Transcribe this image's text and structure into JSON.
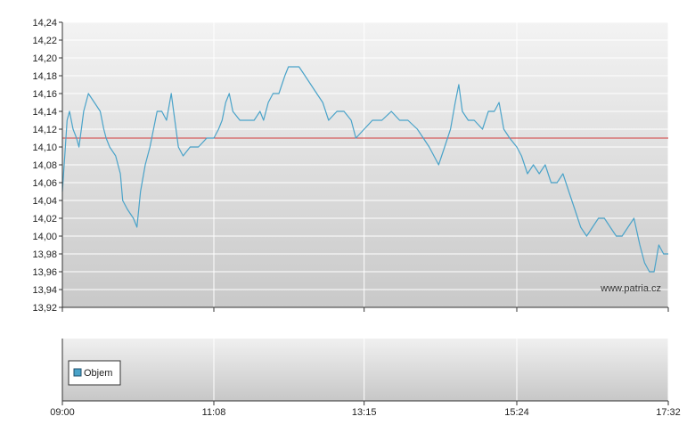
{
  "chart_data": {
    "type": "line",
    "x_ticks": [
      "09:00",
      "11:08",
      "13:15",
      "15:24",
      "17:32"
    ],
    "ylim": [
      13.92,
      14.24
    ],
    "y_ticks": [
      "14,24",
      "14,22",
      "14,20",
      "14,18",
      "14,16",
      "14,14",
      "14,12",
      "14,10",
      "14,08",
      "14,06",
      "14,04",
      "14,02",
      "14,00",
      "13,98",
      "13,96",
      "13,94",
      "13,92"
    ],
    "reference_line": 14.11,
    "series": [
      {
        "color": "#4aa3c9",
        "points": [
          [
            "09:00",
            14.05
          ],
          [
            "09:02",
            14.09
          ],
          [
            "09:04",
            14.13
          ],
          [
            "09:06",
            14.14
          ],
          [
            "09:09",
            14.12
          ],
          [
            "09:12",
            14.11
          ],
          [
            "09:14",
            14.1
          ],
          [
            "09:16",
            14.12
          ],
          [
            "09:18",
            14.14
          ],
          [
            "09:22",
            14.16
          ],
          [
            "09:27",
            14.15
          ],
          [
            "09:32",
            14.14
          ],
          [
            "09:35",
            14.12
          ],
          [
            "09:37",
            14.11
          ],
          [
            "09:40",
            14.1
          ],
          [
            "09:45",
            14.09
          ],
          [
            "09:49",
            14.07
          ],
          [
            "09:51",
            14.04
          ],
          [
            "09:55",
            14.03
          ],
          [
            "10:00",
            14.02
          ],
          [
            "10:03",
            14.01
          ],
          [
            "10:06",
            14.05
          ],
          [
            "10:10",
            14.08
          ],
          [
            "10:14",
            14.1
          ],
          [
            "10:17",
            14.12
          ],
          [
            "10:20",
            14.14
          ],
          [
            "10:24",
            14.14
          ],
          [
            "10:28",
            14.13
          ],
          [
            "10:32",
            14.16
          ],
          [
            "10:35",
            14.13
          ],
          [
            "10:38",
            14.1
          ],
          [
            "10:42",
            14.09
          ],
          [
            "10:48",
            14.1
          ],
          [
            "10:55",
            14.1
          ],
          [
            "11:02",
            14.11
          ],
          [
            "11:08",
            14.11
          ],
          [
            "11:12",
            14.12
          ],
          [
            "11:15",
            14.13
          ],
          [
            "11:18",
            14.15
          ],
          [
            "11:21",
            14.16
          ],
          [
            "11:24",
            14.14
          ],
          [
            "11:30",
            14.13
          ],
          [
            "11:36",
            14.13
          ],
          [
            "11:42",
            14.13
          ],
          [
            "11:47",
            14.14
          ],
          [
            "11:50",
            14.13
          ],
          [
            "11:54",
            14.15
          ],
          [
            "11:58",
            14.16
          ],
          [
            "12:03",
            14.16
          ],
          [
            "12:08",
            14.18
          ],
          [
            "12:11",
            14.19
          ],
          [
            "12:16",
            14.19
          ],
          [
            "12:20",
            14.19
          ],
          [
            "12:25",
            14.18
          ],
          [
            "12:30",
            14.17
          ],
          [
            "12:35",
            14.16
          ],
          [
            "12:40",
            14.15
          ],
          [
            "12:45",
            14.13
          ],
          [
            "12:52",
            14.14
          ],
          [
            "12:58",
            14.14
          ],
          [
            "13:04",
            14.13
          ],
          [
            "13:08",
            14.11
          ],
          [
            "13:15",
            14.12
          ],
          [
            "13:22",
            14.13
          ],
          [
            "13:30",
            14.13
          ],
          [
            "13:38",
            14.14
          ],
          [
            "13:45",
            14.13
          ],
          [
            "13:52",
            14.13
          ],
          [
            "14:00",
            14.12
          ],
          [
            "14:05",
            14.11
          ],
          [
            "14:10",
            14.1
          ],
          [
            "14:14",
            14.09
          ],
          [
            "14:18",
            14.08
          ],
          [
            "14:23",
            14.1
          ],
          [
            "14:28",
            14.12
          ],
          [
            "14:32",
            14.15
          ],
          [
            "14:35",
            14.17
          ],
          [
            "14:38",
            14.14
          ],
          [
            "14:43",
            14.13
          ],
          [
            "14:48",
            14.13
          ],
          [
            "14:55",
            14.12
          ],
          [
            "15:00",
            14.14
          ],
          [
            "15:05",
            14.14
          ],
          [
            "15:09",
            14.15
          ],
          [
            "15:13",
            14.12
          ],
          [
            "15:18",
            14.11
          ],
          [
            "15:24",
            14.1
          ],
          [
            "15:28",
            14.09
          ],
          [
            "15:33",
            14.07
          ],
          [
            "15:38",
            14.08
          ],
          [
            "15:43",
            14.07
          ],
          [
            "15:48",
            14.08
          ],
          [
            "15:53",
            14.06
          ],
          [
            "15:58",
            14.06
          ],
          [
            "16:03",
            14.07
          ],
          [
            "16:08",
            14.05
          ],
          [
            "16:13",
            14.03
          ],
          [
            "16:18",
            14.01
          ],
          [
            "16:23",
            14.0
          ],
          [
            "16:28",
            14.01
          ],
          [
            "16:33",
            14.02
          ],
          [
            "16:38",
            14.02
          ],
          [
            "16:43",
            14.01
          ],
          [
            "16:48",
            14.0
          ],
          [
            "16:53",
            14.0
          ],
          [
            "16:58",
            14.01
          ],
          [
            "17:03",
            14.02
          ],
          [
            "17:08",
            13.99
          ],
          [
            "17:12",
            13.97
          ],
          [
            "17:16",
            13.96
          ],
          [
            "17:20",
            13.96
          ],
          [
            "17:24",
            13.99
          ],
          [
            "17:28",
            13.98
          ],
          [
            "17:32",
            13.98
          ]
        ]
      }
    ],
    "legend": "Objem",
    "watermark": "www.patria.cz"
  }
}
